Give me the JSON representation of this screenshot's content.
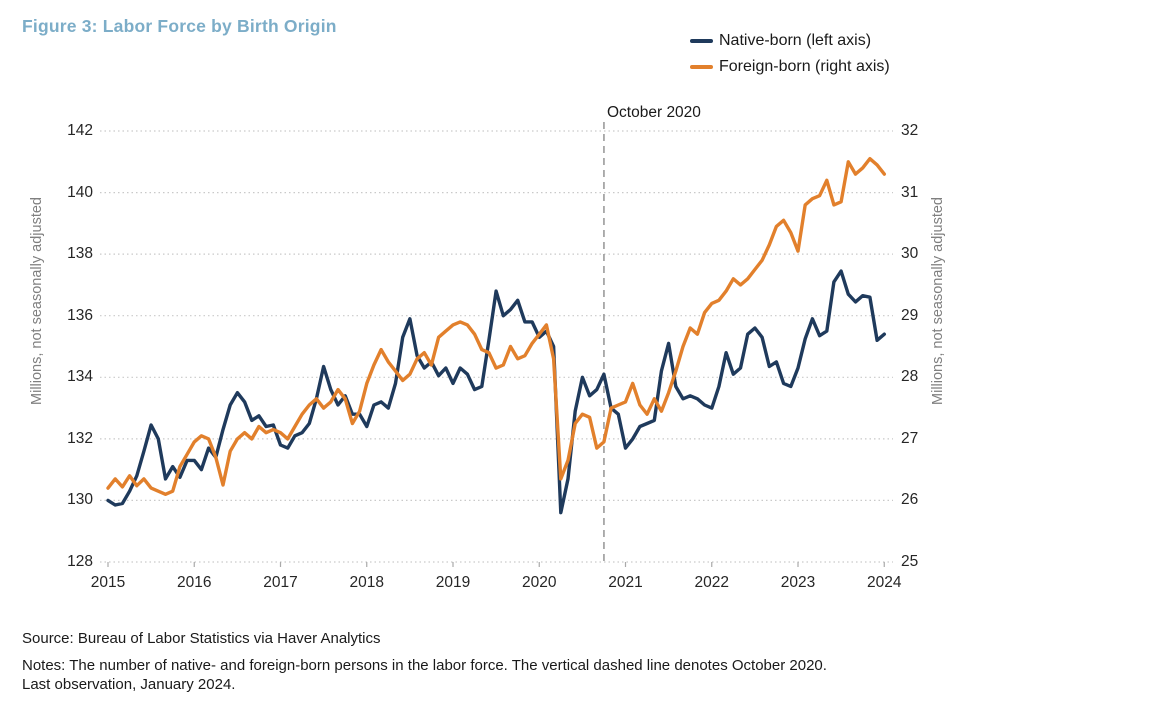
{
  "title": "Figure 3: Labor Force by Birth Origin",
  "legend": [
    {
      "label": "Native-born (left axis)",
      "color": "#1f3a5c"
    },
    {
      "label": "Foreign-born (right axis)",
      "color": "#e2802c"
    }
  ],
  "annotation": {
    "label": "October 2020",
    "x_year": 2020.75
  },
  "axes": {
    "left": {
      "title": "Millions, not seasonally adjusted",
      "ticks": [
        142,
        140,
        138,
        136,
        134,
        132,
        130,
        128
      ],
      "range": [
        128,
        142
      ]
    },
    "right": {
      "title": "Millions, not seasonally adjusted",
      "ticks": [
        32,
        31,
        30,
        29,
        28,
        27,
        26,
        25
      ],
      "range": [
        25,
        32
      ]
    },
    "x": {
      "ticks": [
        2015,
        2016,
        2017,
        2018,
        2019,
        2020,
        2021,
        2022,
        2023,
        2024
      ]
    }
  },
  "source": "Source: Bureau of Labor Statistics via Haver Analytics",
  "notes": {
    "line1": "Notes: The number of native- and foreign-born persons in the labor force. The vertical dashed line denotes October 2020.",
    "line2": "Last observation, January 2024."
  },
  "chart_data": {
    "type": "line",
    "frequency": "monthly",
    "x_start": {
      "year": 2015,
      "month": 1
    },
    "x_end": {
      "year": 2024,
      "month": 1
    },
    "xlim": [
      2014.9,
      2024.1
    ],
    "grid": "horizontal-dotted",
    "legend_position": "top-right",
    "annotation_line": {
      "x_year": 2020.75,
      "style": "dashed",
      "color": "#9b9b9b",
      "label": "October 2020"
    },
    "series": [
      {
        "name": "Native-born (left axis)",
        "axis": "left",
        "units": "Millions, not seasonally adjusted",
        "ylim": [
          128,
          142
        ],
        "color": "#1f3a5c",
        "values": [
          130.0,
          129.85,
          129.9,
          130.3,
          130.8,
          131.6,
          132.45,
          132.0,
          130.7,
          131.1,
          130.75,
          131.3,
          131.3,
          131.0,
          131.7,
          131.4,
          132.3,
          133.1,
          133.5,
          133.2,
          132.6,
          132.75,
          132.4,
          132.45,
          131.8,
          131.7,
          132.1,
          132.2,
          132.5,
          133.3,
          134.35,
          133.6,
          133.1,
          133.4,
          132.8,
          132.8,
          132.4,
          133.1,
          133.2,
          133.0,
          133.8,
          135.3,
          135.9,
          134.7,
          134.3,
          134.5,
          134.05,
          134.3,
          133.8,
          134.3,
          134.1,
          133.6,
          133.7,
          135.2,
          136.8,
          136.0,
          136.2,
          136.5,
          135.8,
          135.8,
          135.3,
          135.5,
          135.0,
          129.6,
          130.7,
          132.9,
          134.0,
          133.4,
          133.6,
          134.1,
          133.0,
          132.8,
          131.7,
          132.0,
          132.4,
          132.5,
          132.6,
          134.2,
          135.1,
          133.7,
          133.3,
          133.4,
          133.3,
          133.1,
          133.0,
          133.7,
          134.8,
          134.1,
          134.3,
          135.4,
          135.6,
          135.3,
          134.35,
          134.5,
          133.8,
          133.7,
          134.3,
          135.25,
          135.9,
          135.35,
          135.5,
          137.1,
          137.45,
          136.7,
          136.45,
          136.65,
          136.6,
          135.2,
          135.4
        ]
      },
      {
        "name": "Foreign-born (right axis)",
        "axis": "right",
        "units": "Millions, not seasonally adjusted",
        "ylim": [
          25,
          32
        ],
        "color": "#e2802c",
        "values": [
          26.2,
          26.35,
          26.22,
          26.4,
          26.24,
          26.35,
          26.2,
          26.15,
          26.1,
          26.15,
          26.55,
          26.75,
          26.95,
          27.05,
          27.0,
          26.7,
          26.25,
          26.8,
          27.0,
          27.1,
          27.0,
          27.2,
          27.1,
          27.15,
          27.1,
          27.0,
          27.2,
          27.4,
          27.55,
          27.65,
          27.5,
          27.6,
          27.8,
          27.65,
          27.25,
          27.45,
          27.9,
          28.2,
          28.45,
          28.25,
          28.1,
          27.95,
          28.05,
          28.3,
          28.4,
          28.2,
          28.65,
          28.75,
          28.85,
          28.9,
          28.85,
          28.7,
          28.45,
          28.4,
          28.15,
          28.2,
          28.5,
          28.3,
          28.35,
          28.55,
          28.7,
          28.85,
          28.3,
          26.35,
          26.65,
          27.25,
          27.4,
          27.35,
          26.85,
          26.95,
          27.5,
          27.55,
          27.6,
          27.9,
          27.55,
          27.4,
          27.65,
          27.45,
          27.75,
          28.1,
          28.5,
          28.8,
          28.7,
          29.05,
          29.2,
          29.25,
          29.4,
          29.6,
          29.5,
          29.6,
          29.75,
          29.9,
          30.15,
          30.45,
          30.55,
          30.35,
          30.05,
          30.8,
          30.9,
          30.95,
          31.2,
          30.8,
          30.85,
          31.5,
          31.3,
          31.4,
          31.55,
          31.45,
          31.3
        ]
      }
    ]
  }
}
